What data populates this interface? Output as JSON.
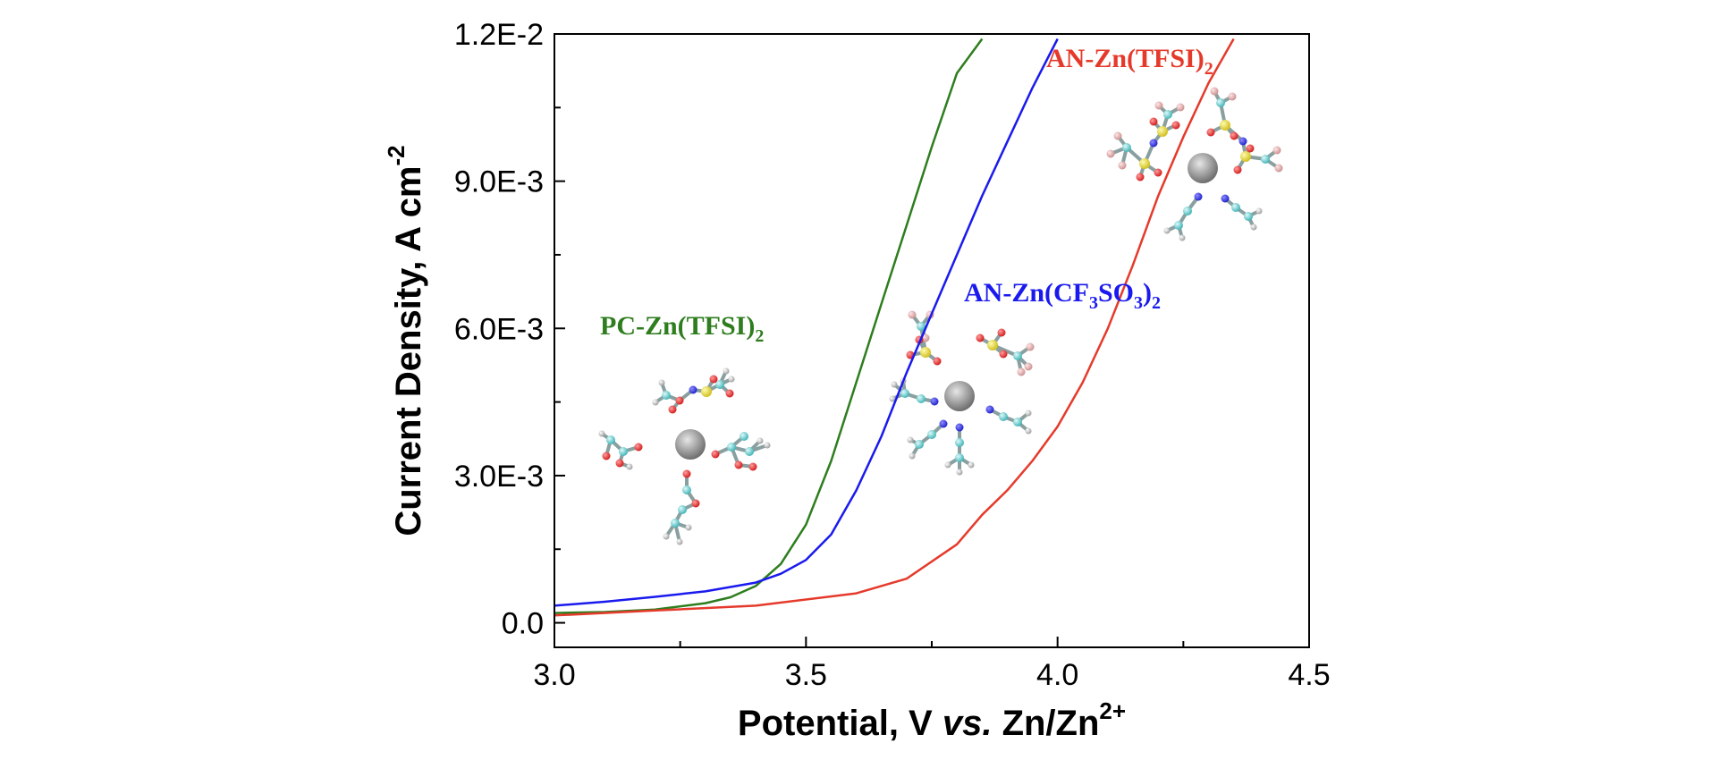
{
  "chart_data": {
    "type": "line",
    "xlabel": {
      "main": "Potential, V ",
      "italic": "vs.",
      "rest": " Zn/Zn",
      "sup": "2+"
    },
    "ylabel": {
      "main": "Current Density, A cm",
      "sup": "-2"
    },
    "xlim": [
      3.0,
      4.5
    ],
    "ylim": [
      -0.0005,
      0.012
    ],
    "x_ticks": [
      3.0,
      3.5,
      4.0,
      4.5
    ],
    "x_tick_labels": [
      "3.0",
      "3.5",
      "4.0",
      "4.5"
    ],
    "y_ticks": [
      0.0,
      0.003,
      0.006,
      0.009,
      0.012
    ],
    "y_tick_labels": [
      "0.0",
      "3.0E-3",
      "6.0E-3",
      "9.0E-3",
      "1.2E-2"
    ],
    "grid": false,
    "series": [
      {
        "name": "PC-Zn(TFSI)2",
        "label_parts": [
          "PC-Zn(TFSI)",
          "2"
        ],
        "color": "#2e7d1e",
        "points": [
          [
            3.0,
            0.0002
          ],
          [
            3.1,
            0.00022
          ],
          [
            3.2,
            0.00027
          ],
          [
            3.3,
            0.0004
          ],
          [
            3.35,
            0.00052
          ],
          [
            3.4,
            0.00075
          ],
          [
            3.45,
            0.0012
          ],
          [
            3.5,
            0.002
          ],
          [
            3.55,
            0.0033
          ],
          [
            3.6,
            0.0049
          ],
          [
            3.65,
            0.0065
          ],
          [
            3.7,
            0.0081
          ],
          [
            3.75,
            0.0097
          ],
          [
            3.8,
            0.0112
          ],
          [
            3.85,
            0.0119
          ]
        ]
      },
      {
        "name": "AN-Zn(CF3SO3)2",
        "label_parts": [
          "AN-Zn(CF",
          "3",
          "SO",
          "3",
          ")",
          "2"
        ],
        "color": "#1a1aee",
        "points": [
          [
            3.0,
            0.00035
          ],
          [
            3.1,
            0.00043
          ],
          [
            3.2,
            0.00053
          ],
          [
            3.3,
            0.00064
          ],
          [
            3.4,
            0.00082
          ],
          [
            3.45,
            0.001
          ],
          [
            3.5,
            0.00128
          ],
          [
            3.55,
            0.0018
          ],
          [
            3.6,
            0.0027
          ],
          [
            3.65,
            0.0038
          ],
          [
            3.7,
            0.0051
          ],
          [
            3.75,
            0.0063
          ],
          [
            3.8,
            0.0075
          ],
          [
            3.85,
            0.0087
          ],
          [
            3.9,
            0.0098
          ],
          [
            3.95,
            0.0109
          ],
          [
            4.0,
            0.0119
          ]
        ]
      },
      {
        "name": "AN-Zn(TFSI)2",
        "label_parts": [
          "AN-Zn(TFSI)",
          "2"
        ],
        "color": "#e53a2b",
        "points": [
          [
            3.0,
            0.00015
          ],
          [
            3.2,
            0.00025
          ],
          [
            3.4,
            0.00035
          ],
          [
            3.6,
            0.0006
          ],
          [
            3.7,
            0.0009
          ],
          [
            3.8,
            0.0016
          ],
          [
            3.85,
            0.0022
          ],
          [
            3.9,
            0.0027
          ],
          [
            3.95,
            0.0033
          ],
          [
            4.0,
            0.004
          ],
          [
            4.05,
            0.0049
          ],
          [
            4.1,
            0.006
          ],
          [
            4.15,
            0.0073
          ],
          [
            4.2,
            0.0087
          ],
          [
            4.25,
            0.0099
          ],
          [
            4.3,
            0.011
          ],
          [
            4.35,
            0.0119
          ]
        ]
      }
    ]
  }
}
